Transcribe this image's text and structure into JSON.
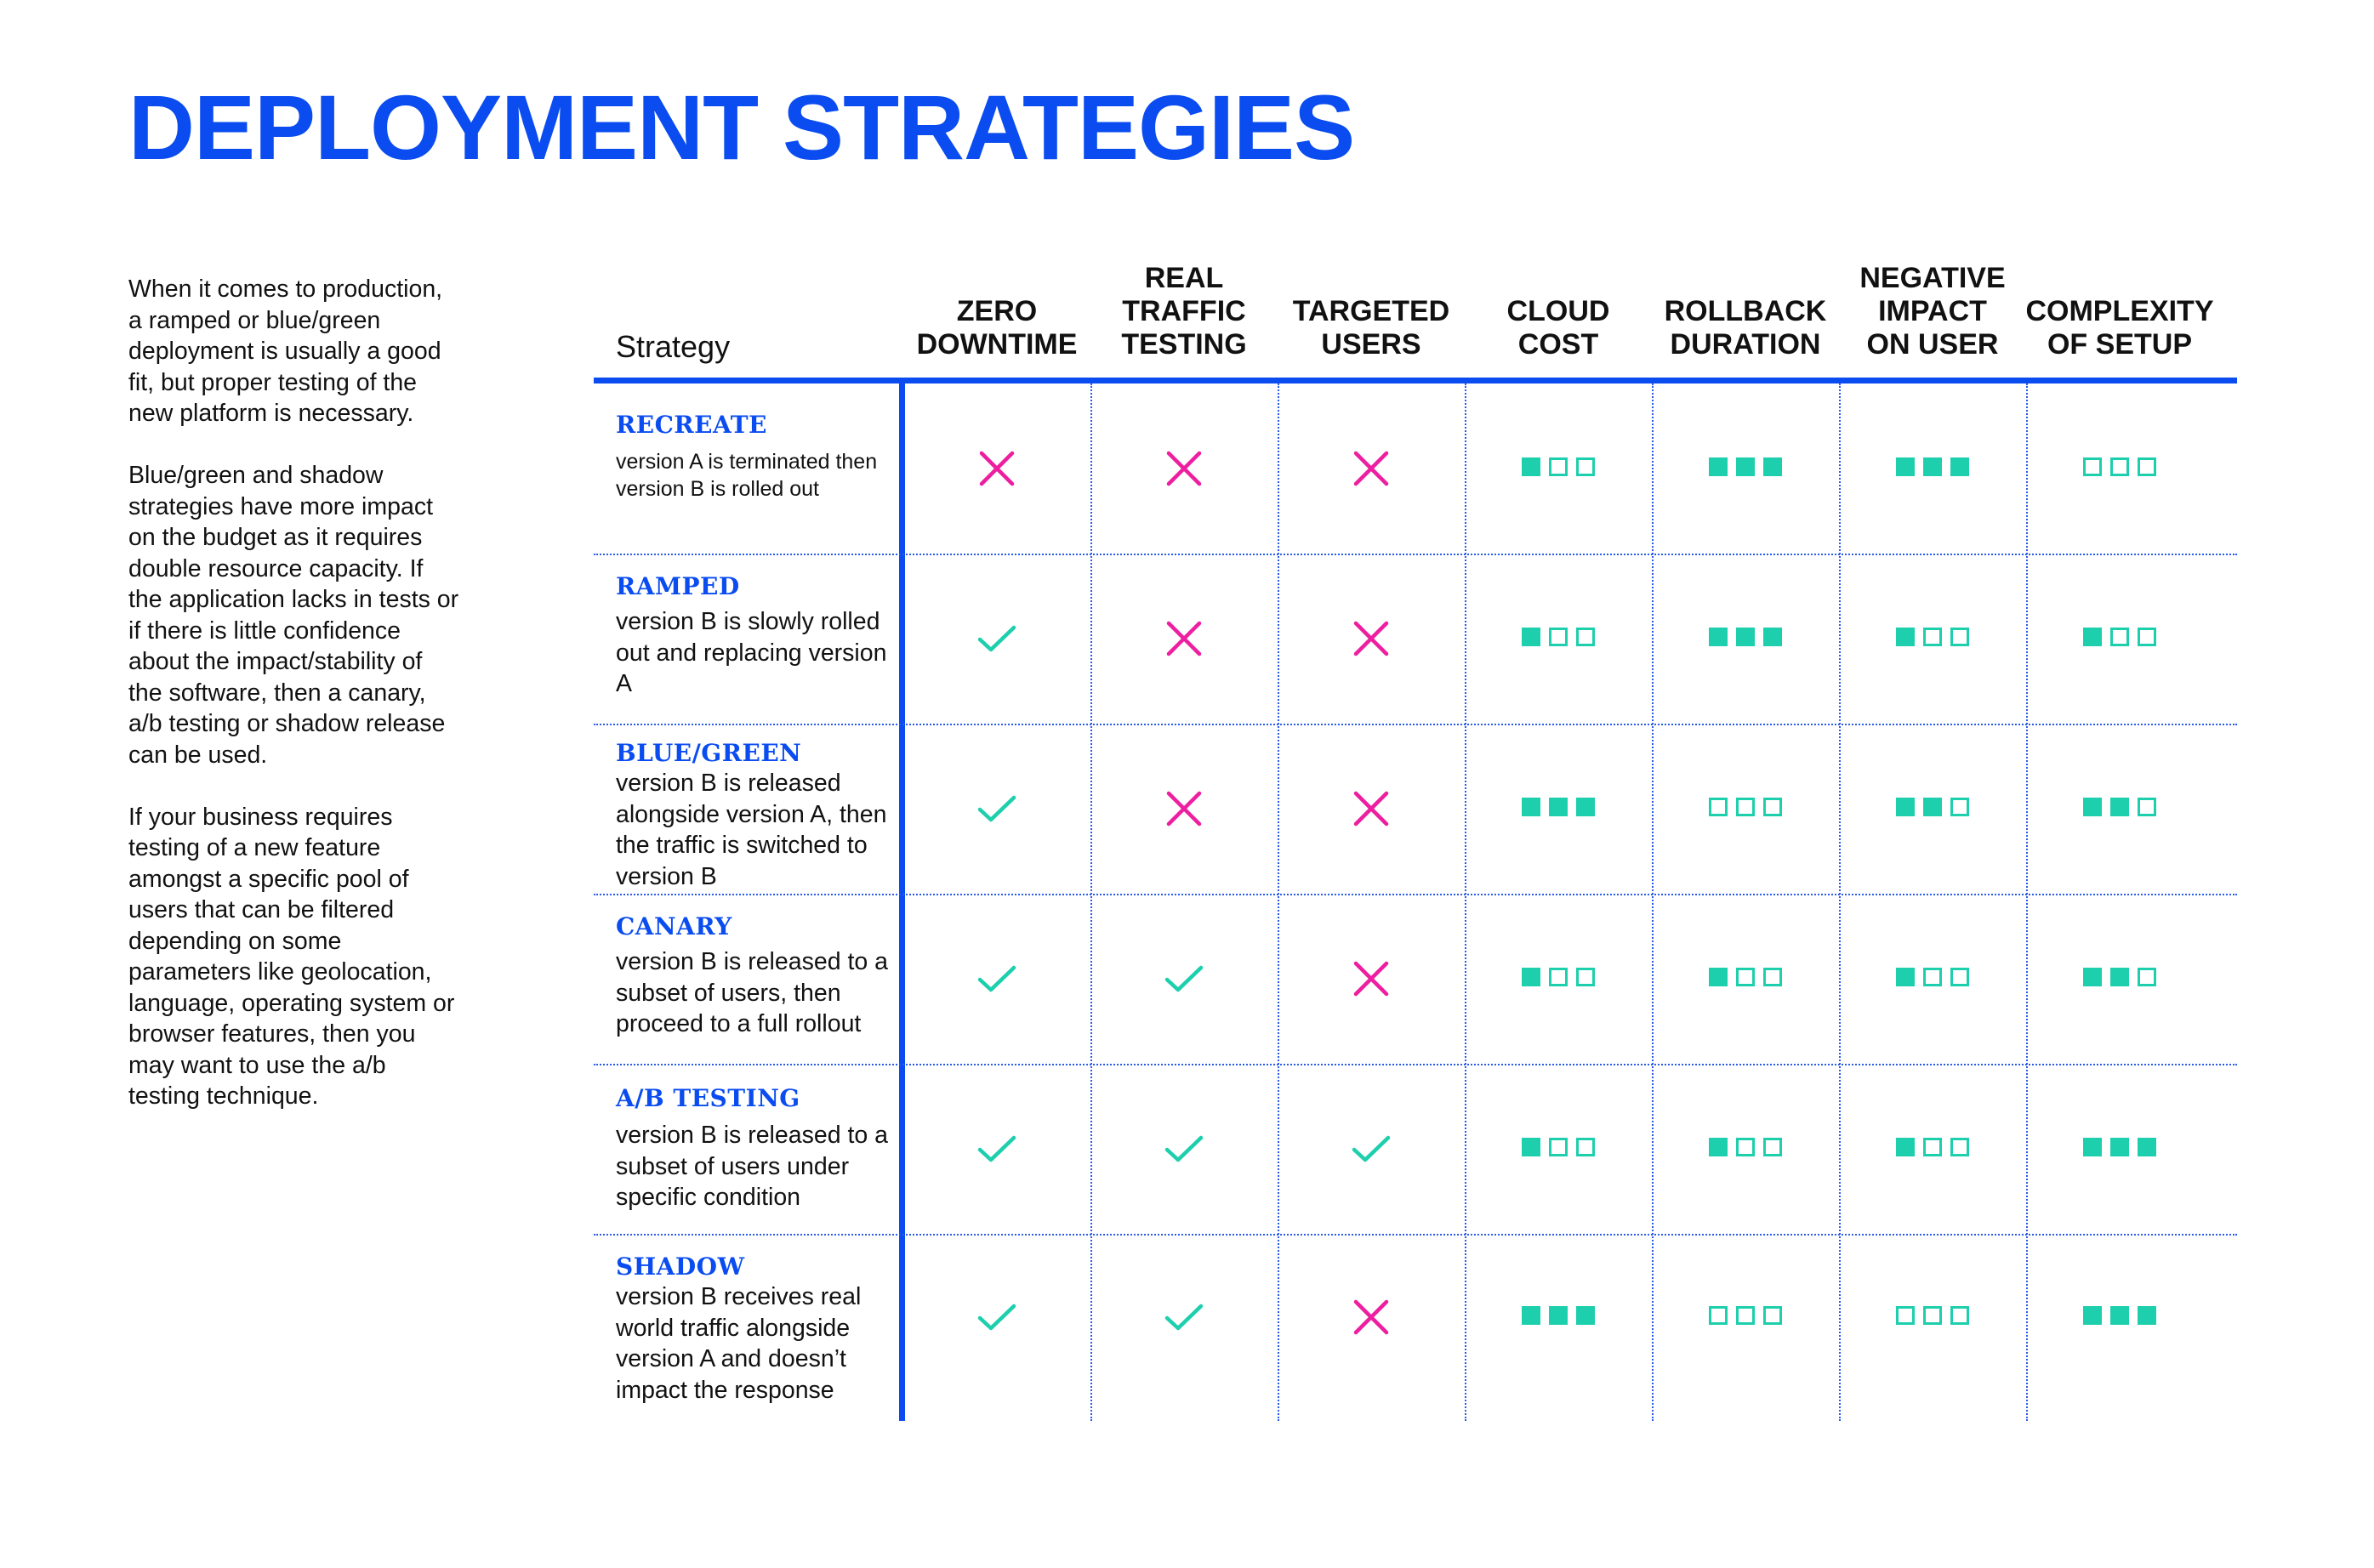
{
  "title": "DEPLOYMENT STRATEGIES",
  "intro_paragraphs": [
    "When it comes to production, a ramped or blue/green deployment is usually a good fit, but proper testing of the new platform is necessary.",
    "Blue/green and shadow strategies have more impact on the budget as it requires double resource capacity. If the application lacks in tests or if there is little confidence about the impact/stability of the software, then a canary, a/b testing or shadow release can be used.",
    "If your business requires testing of a new feature amongst a specific pool of users that can be filtered depending on some parameters like geolocation, language, operating system or browser features, then you may want to use the a/b testing technique."
  ],
  "table": {
    "strategy_header": "Strategy",
    "columns": [
      {
        "key": "zero_downtime",
        "label_lines": [
          "ZERO",
          "DOWNTIME"
        ],
        "kind": "bool"
      },
      {
        "key": "real_traffic_testing",
        "label_lines": [
          "REAL",
          "TRAFFIC",
          "TESTING"
        ],
        "kind": "bool"
      },
      {
        "key": "targeted_users",
        "label_lines": [
          "TARGETED",
          "USERS"
        ],
        "kind": "bool"
      },
      {
        "key": "cloud_cost",
        "label_lines": [
          "CLOUD",
          "COST"
        ],
        "kind": "level"
      },
      {
        "key": "rollback_duration",
        "label_lines": [
          "ROLLBACK",
          "DURATION"
        ],
        "kind": "level"
      },
      {
        "key": "negative_impact_on_user",
        "label_lines": [
          "NEGATIVE",
          "IMPACT",
          "ON USER"
        ],
        "kind": "level"
      },
      {
        "key": "complexity_of_setup",
        "label_lines": [
          "COMPLEXITY",
          "OF SETUP"
        ],
        "kind": "level"
      }
    ],
    "level_max": 3,
    "colors": {
      "accent": "#0a4cf0",
      "check": "#1ecfad",
      "cross": "#ee1ea0",
      "level": "#1ecfad"
    },
    "rows": [
      {
        "name": "RECREATE",
        "description": "version A is terminated then version B is rolled out",
        "zero_downtime": false,
        "real_traffic_testing": false,
        "targeted_users": false,
        "cloud_cost": 1,
        "rollback_duration": 3,
        "negative_impact_on_user": 3,
        "complexity_of_setup": 0
      },
      {
        "name": "RAMPED",
        "description": "version B is slowly rolled out and replacing version A",
        "zero_downtime": true,
        "real_traffic_testing": false,
        "targeted_users": false,
        "cloud_cost": 1,
        "rollback_duration": 3,
        "negative_impact_on_user": 1,
        "complexity_of_setup": 1
      },
      {
        "name": "BLUE/GREEN",
        "description": "version B is released alongside version A, then the traffic is switched to version B",
        "zero_downtime": true,
        "real_traffic_testing": false,
        "targeted_users": false,
        "cloud_cost": 3,
        "rollback_duration": 0,
        "negative_impact_on_user": 2,
        "complexity_of_setup": 2
      },
      {
        "name": "CANARY",
        "description": "version B is released to a subset of users, then proceed to a full rollout",
        "zero_downtime": true,
        "real_traffic_testing": true,
        "targeted_users": false,
        "cloud_cost": 1,
        "rollback_duration": 1,
        "negative_impact_on_user": 1,
        "complexity_of_setup": 2
      },
      {
        "name": "A/B TESTING",
        "description": "version B is released to a subset of users under specific condition",
        "zero_downtime": true,
        "real_traffic_testing": true,
        "targeted_users": true,
        "cloud_cost": 1,
        "rollback_duration": 1,
        "negative_impact_on_user": 1,
        "complexity_of_setup": 3
      },
      {
        "name": "SHADOW",
        "description": "version B receives real world traffic alongside version A and doesn’t impact the response",
        "zero_downtime": true,
        "real_traffic_testing": true,
        "targeted_users": false,
        "cloud_cost": 3,
        "rollback_duration": 0,
        "negative_impact_on_user": 0,
        "complexity_of_setup": 3
      }
    ]
  }
}
